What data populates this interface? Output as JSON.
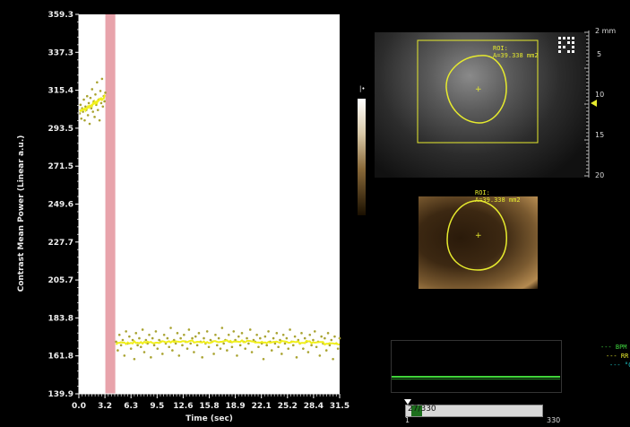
{
  "chart_data": {
    "type": "scatter",
    "ylabel": "Contrast Mean Power (Linear a.u.)",
    "xlabel": "Time (sec)",
    "ylim": [
      139.9,
      359.3
    ],
    "xlim": [
      0.0,
      31.5
    ],
    "x_ticks": [
      "0.0",
      "3.2",
      "6.3",
      "9.5",
      "12.6",
      "15.8",
      "18.9",
      "22.1",
      "25.2",
      "28.4",
      "31.5"
    ],
    "y_ticks": [
      "359.3",
      "337.3",
      "315.4",
      "293.5",
      "271.5",
      "249.6",
      "227.7",
      "205.7",
      "183.8",
      "161.8",
      "139.9"
    ],
    "destruction_band": [
      3.2,
      4.4
    ],
    "series": [
      {
        "points": [
          [
            0.1,
            302
          ],
          [
            0.2,
            307
          ],
          [
            0.3,
            299
          ],
          [
            0.4,
            305
          ],
          [
            0.5,
            303
          ],
          [
            0.6,
            310
          ],
          [
            0.7,
            298
          ],
          [
            0.8,
            306
          ],
          [
            0.9,
            304
          ],
          [
            1.0,
            312
          ],
          [
            1.1,
            301
          ],
          [
            1.2,
            308
          ],
          [
            1.3,
            296
          ],
          [
            1.4,
            311
          ],
          [
            1.5,
            305
          ],
          [
            1.6,
            316
          ],
          [
            1.7,
            303
          ],
          [
            1.8,
            309
          ],
          [
            1.9,
            300
          ],
          [
            2.0,
            313
          ],
          [
            2.1,
            307
          ],
          [
            2.2,
            320
          ],
          [
            2.3,
            304
          ],
          [
            2.4,
            310
          ],
          [
            2.5,
            298
          ],
          [
            2.6,
            315
          ],
          [
            2.7,
            308
          ],
          [
            2.8,
            322
          ],
          [
            2.9,
            306
          ],
          [
            3.0,
            312
          ],
          [
            3.1,
            309
          ],
          [
            3.2,
            314
          ]
        ]
      },
      {
        "points": [
          [
            4.5,
            170
          ],
          [
            4.7,
            165
          ],
          [
            4.9,
            174
          ],
          [
            5.1,
            168
          ],
          [
            5.3,
            171
          ],
          [
            5.5,
            162
          ],
          [
            5.7,
            176
          ],
          [
            5.9,
            169
          ],
          [
            6.1,
            173
          ],
          [
            6.3,
            166
          ],
          [
            6.5,
            171
          ],
          [
            6.7,
            160
          ],
          [
            6.9,
            175
          ],
          [
            7.1,
            168
          ],
          [
            7.3,
            172
          ],
          [
            7.5,
            167
          ],
          [
            7.7,
            177
          ],
          [
            7.9,
            164
          ],
          [
            8.1,
            171
          ],
          [
            8.3,
            169
          ],
          [
            8.5,
            174
          ],
          [
            8.7,
            161
          ],
          [
            8.9,
            172
          ],
          [
            9.1,
            168
          ],
          [
            9.3,
            176
          ],
          [
            9.5,
            166
          ],
          [
            9.7,
            171
          ],
          [
            9.9,
            170
          ],
          [
            10.1,
            163
          ],
          [
            10.3,
            174
          ],
          [
            10.5,
            169
          ],
          [
            10.7,
            172
          ],
          [
            10.9,
            167
          ],
          [
            11.1,
            178
          ],
          [
            11.3,
            165
          ],
          [
            11.5,
            171
          ],
          [
            11.7,
            169
          ],
          [
            11.9,
            175
          ],
          [
            12.1,
            162
          ],
          [
            12.3,
            172
          ],
          [
            12.5,
            168
          ],
          [
            12.7,
            174
          ],
          [
            12.9,
            170
          ],
          [
            13.1,
            166
          ],
          [
            13.3,
            177
          ],
          [
            13.5,
            169
          ],
          [
            13.7,
            172
          ],
          [
            13.9,
            164
          ],
          [
            14.1,
            173
          ],
          [
            14.3,
            168
          ],
          [
            14.5,
            175
          ],
          [
            14.7,
            170
          ],
          [
            14.9,
            161
          ],
          [
            15.1,
            172
          ],
          [
            15.3,
            169
          ],
          [
            15.5,
            176
          ],
          [
            15.7,
            167
          ],
          [
            15.9,
            171
          ],
          [
            16.1,
            170
          ],
          [
            16.3,
            163
          ],
          [
            16.5,
            174
          ],
          [
            16.7,
            168
          ],
          [
            16.9,
            172
          ],
          [
            17.1,
            166
          ],
          [
            17.3,
            178
          ],
          [
            17.5,
            169
          ],
          [
            17.7,
            171
          ],
          [
            17.9,
            165
          ],
          [
            18.1,
            174
          ],
          [
            18.3,
            170
          ],
          [
            18.5,
            167
          ],
          [
            18.7,
            176
          ],
          [
            18.9,
            171
          ],
          [
            19.1,
            162
          ],
          [
            19.3,
            173
          ],
          [
            19.5,
            168
          ],
          [
            19.7,
            175
          ],
          [
            19.9,
            170
          ],
          [
            20.1,
            166
          ],
          [
            20.3,
            172
          ],
          [
            20.5,
            169
          ],
          [
            20.7,
            177
          ],
          [
            20.9,
            164
          ],
          [
            21.1,
            171
          ],
          [
            21.3,
            170
          ],
          [
            21.5,
            174
          ],
          [
            21.7,
            167
          ],
          [
            21.9,
            172
          ],
          [
            22.1,
            169
          ],
          [
            22.3,
            160
          ],
          [
            22.5,
            173
          ],
          [
            22.7,
            168
          ],
          [
            22.9,
            176
          ],
          [
            23.1,
            170
          ],
          [
            23.3,
            165
          ],
          [
            23.5,
            172
          ],
          [
            23.7,
            169
          ],
          [
            23.9,
            175
          ],
          [
            24.1,
            167
          ],
          [
            24.3,
            171
          ],
          [
            24.5,
            163
          ],
          [
            24.7,
            174
          ],
          [
            24.9,
            169
          ],
          [
            25.1,
            172
          ],
          [
            25.3,
            166
          ],
          [
            25.5,
            177
          ],
          [
            25.7,
            170
          ],
          [
            25.9,
            168
          ],
          [
            26.1,
            173
          ],
          [
            26.3,
            161
          ],
          [
            26.5,
            171
          ],
          [
            26.7,
            169
          ],
          [
            26.9,
            175
          ],
          [
            27.1,
            166
          ],
          [
            27.3,
            172
          ],
          [
            27.5,
            170
          ],
          [
            27.7,
            164
          ],
          [
            27.9,
            174
          ],
          [
            28.1,
            168
          ],
          [
            28.3,
            171
          ],
          [
            28.5,
            176
          ],
          [
            28.7,
            167
          ],
          [
            28.9,
            170
          ],
          [
            29.1,
            162
          ],
          [
            29.3,
            173
          ],
          [
            29.5,
            169
          ],
          [
            29.7,
            172
          ],
          [
            29.9,
            165
          ],
          [
            30.1,
            175
          ],
          [
            30.3,
            168
          ],
          [
            30.5,
            171
          ],
          [
            30.7,
            160
          ],
          [
            30.9,
            173
          ],
          [
            31.1,
            169
          ],
          [
            31.3,
            166
          ],
          [
            31.5,
            172
          ]
        ]
      }
    ]
  },
  "ultrasound": {
    "roi_top_label": "ROI:",
    "roi_top_area": "A=39.338 mm2",
    "roi_bottom_label": "ROI:",
    "roi_bottom_area": "A=39.338 mm2",
    "depth_unit": "2 mm",
    "depth_ticks": [
      "5",
      "10",
      "15",
      "20"
    ]
  },
  "physio_legend": [
    "--- BPM",
    "--- RR",
    "--- °C"
  ],
  "physio_colors": [
    "#3fd43f",
    "#e6ea2e",
    "#1ec9c9"
  ],
  "frame": {
    "counter": "27/330",
    "start": "1",
    "end": "330",
    "position": 0.082
  },
  "colors": {
    "marker": "#a9a330",
    "fit_line": "#f1f01c",
    "band": "#e8a3ab",
    "roi": "#e6ea2e",
    "ecg": "#40d63a"
  }
}
